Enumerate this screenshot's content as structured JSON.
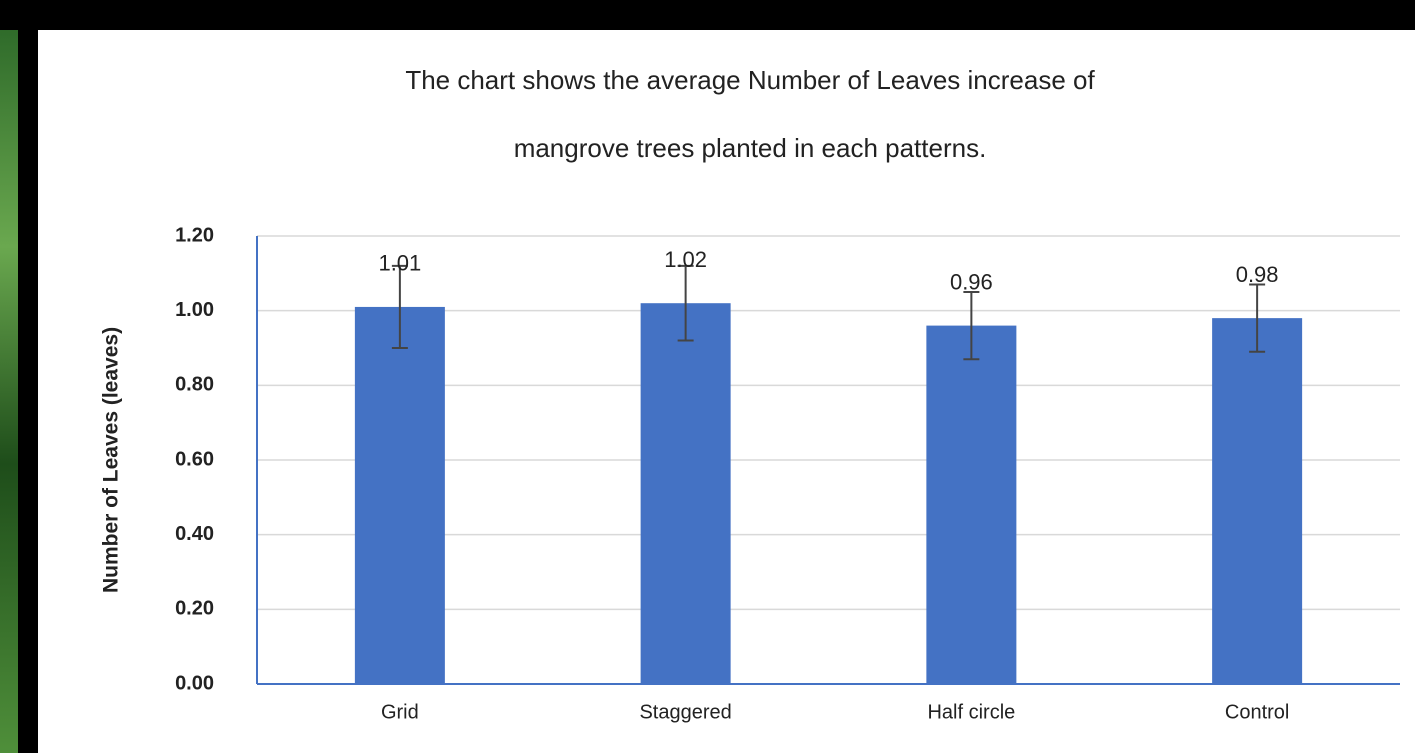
{
  "chart_data": {
    "type": "bar",
    "title": [
      "The chart shows the  average  Number of Leaves increase of",
      "mangrove trees planted in each patterns."
    ],
    "y_label": "Number of Leaves (leaves)",
    "categories": [
      "Grid",
      "Staggered",
      "Half circle",
      "Control"
    ],
    "values": [
      1.01,
      1.02,
      0.96,
      0.98
    ],
    "errors": [
      0.11,
      0.1,
      0.09,
      0.09
    ],
    "color": "#4472c4",
    "ylim": [
      0,
      1.2
    ],
    "yticks": [
      {
        "value": 0,
        "label": "0.00"
      },
      {
        "value": 0.2,
        "label": "0.20"
      },
      {
        "value": 0.4,
        "label": "0.40"
      },
      {
        "value": 0.6,
        "label": "0.60"
      },
      {
        "value": 0.8,
        "label": "0.80"
      },
      {
        "value": 1,
        "label": "1.00"
      },
      {
        "value": 1.2,
        "label": "1.20"
      }
    ],
    "grid": true
  }
}
